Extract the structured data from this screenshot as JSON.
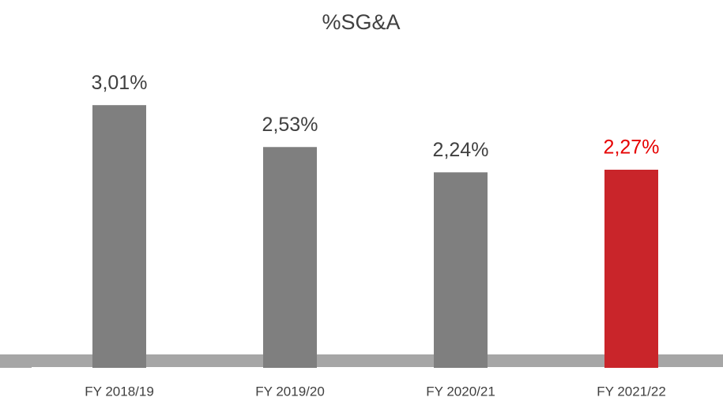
{
  "chart_data": {
    "type": "bar",
    "title": "%SG&A",
    "categories": [
      "FY 2018/19",
      "FY 2019/20",
      "FY 2020/21",
      "FY 2021/22"
    ],
    "values": [
      3.01,
      2.53,
      2.24,
      2.27
    ],
    "value_labels": [
      "3,01%",
      "2,53%",
      "2,24%",
      "2,27%"
    ],
    "colors": [
      "#7f7f7f",
      "#7f7f7f",
      "#7f7f7f",
      "#c9252a"
    ],
    "value_label_colors": [
      "#404040",
      "#404040",
      "#404040",
      "#e60000"
    ],
    "ylim": [
      0,
      3.5
    ]
  }
}
